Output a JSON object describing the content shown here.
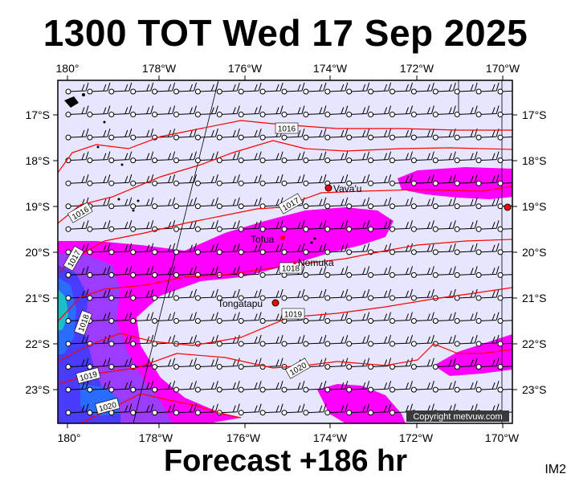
{
  "title": "1300 TOT Wed 17 Sep 2025",
  "forecast": "Forecast +186 hr",
  "image_code": "IM2",
  "copyright": "Copyright metvuw.com",
  "lon_ticks": [
    "180°",
    "178°W",
    "176°W",
    "174°W",
    "172°W",
    "170°W"
  ],
  "lat_ticks": [
    "17°S",
    "18°S",
    "19°S",
    "20°S",
    "21°S",
    "22°S",
    "23°S"
  ],
  "places": [
    {
      "name": "Vava'u"
    },
    {
      "name": "Tofua"
    },
    {
      "name": "Nomuka"
    },
    {
      "name": "Tongatapu"
    }
  ],
  "isobar_labels": [
    "1016",
    "1016",
    "1017",
    "1017",
    "1018",
    "1018",
    "1019",
    "1019",
    "1020",
    "1020"
  ],
  "colors": {
    "ocean_bg": "#e6e6ff",
    "rain_light": "#ff00ff",
    "rain_mid": "#9b3cff",
    "rain_heavy": "#3c3cff",
    "rain_core": "#2aa0ff",
    "isobar": "#ff0000"
  }
}
